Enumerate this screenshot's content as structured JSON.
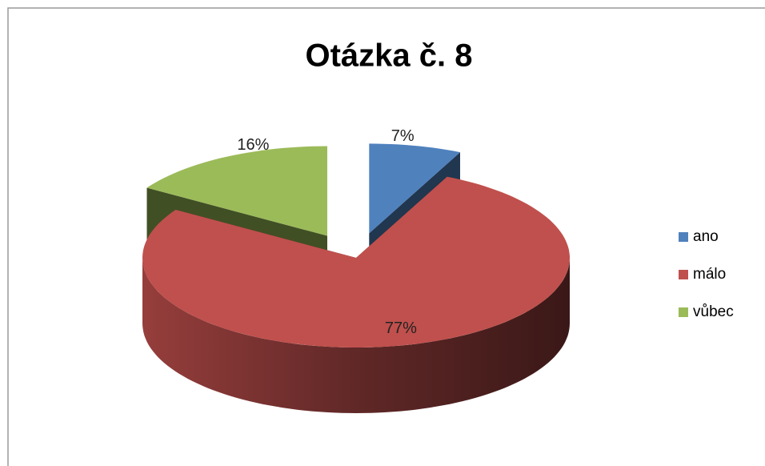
{
  "chart_data": {
    "type": "pie",
    "title": "Otázka č. 8",
    "categories": [
      "ano",
      "málo",
      "vůbec"
    ],
    "values": [
      7,
      77,
      16
    ],
    "value_labels": [
      "7%",
      "77%",
      "16%"
    ],
    "colors": [
      "#4f81bd",
      "#c0504d",
      "#9bbb59"
    ],
    "legend": "right"
  }
}
